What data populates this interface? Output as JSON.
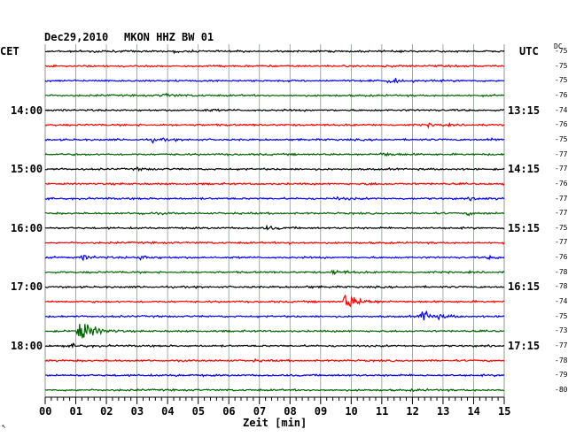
{
  "header": {
    "date": "Dec29,2010",
    "station": "MKON HHZ BW 01",
    "left_tz": "CET",
    "right_tz": "UTC",
    "dc_label": "DC"
  },
  "left_times": [
    "14:00",
    "15:00",
    "16:00",
    "17:00",
    "18:00"
  ],
  "right_times": [
    "13:15",
    "14:15",
    "15:15",
    "16:15",
    "17:15"
  ],
  "x_ticks": [
    "00",
    "01",
    "02",
    "03",
    "04",
    "05",
    "06",
    "07",
    "08",
    "09",
    "10",
    "11",
    "12",
    "13",
    "14",
    "15"
  ],
  "x_label": "Zeit [min]",
  "footnote": "↖",
  "trace_colors": [
    "#000000",
    "#ff0000",
    "#0000ff",
    "#006400"
  ],
  "grid_color": "#8a9a8a",
  "chart_data": {
    "type": "line",
    "title": "Dec29,2010 MKON HHZ BW 01",
    "xlabel": "Zeit [min]",
    "xlim": [
      0,
      15
    ],
    "rows": [
      {
        "dc": -75,
        "events": [
          {
            "t": 1.5,
            "a": 1
          },
          {
            "t": 4.2,
            "a": 0.8
          }
        ]
      },
      {
        "dc": -75,
        "events": [
          {
            "t": 11.0,
            "a": 0.7
          }
        ]
      },
      {
        "dc": -75,
        "events": [
          {
            "t": 11.2,
            "a": 2.5
          }
        ]
      },
      {
        "dc": -76,
        "events": [
          {
            "t": 3.8,
            "a": 2
          }
        ]
      },
      {
        "dc": -74,
        "events": [
          {
            "t": 5.2,
            "a": 0.7
          }
        ]
      },
      {
        "dc": -76,
        "events": [
          {
            "t": 12.5,
            "a": 1.2
          }
        ]
      },
      {
        "dc": -75,
        "events": [
          {
            "t": 3.5,
            "a": 1.5
          },
          {
            "t": 14.5,
            "a": 1
          }
        ]
      },
      {
        "dc": -77,
        "events": [
          {
            "t": 11.0,
            "a": 1.8
          }
        ]
      },
      {
        "dc": -77,
        "events": [
          {
            "t": 3.0,
            "a": 1
          }
        ]
      },
      {
        "dc": -76,
        "events": [
          {
            "t": 10.5,
            "a": 0.7
          }
        ]
      },
      {
        "dc": -77,
        "events": [
          {
            "t": 9.5,
            "a": 1
          },
          {
            "t": 13.9,
            "a": 1.2
          }
        ]
      },
      {
        "dc": -77,
        "events": [
          {
            "t": 3.0,
            "a": 1.2
          },
          {
            "t": 13.8,
            "a": 1
          }
        ]
      },
      {
        "dc": -75,
        "events": [
          {
            "t": 7.2,
            "a": 1.5
          }
        ]
      },
      {
        "dc": -77,
        "events": [
          {
            "t": 8.0,
            "a": 0.8
          }
        ]
      },
      {
        "dc": -76,
        "events": [
          {
            "t": 1.2,
            "a": 2
          },
          {
            "t": 3.1,
            "a": 2
          },
          {
            "t": 14.5,
            "a": 1.2
          }
        ]
      },
      {
        "dc": -78,
        "events": [
          {
            "t": 9.4,
            "a": 2
          }
        ]
      },
      {
        "dc": -78,
        "events": [
          {
            "t": 8.5,
            "a": 0.6
          }
        ]
      },
      {
        "dc": -74,
        "events": [
          {
            "t": 9.8,
            "a": 9
          }
        ]
      },
      {
        "dc": -75,
        "events": [
          {
            "t": 12.3,
            "a": 7
          }
        ]
      },
      {
        "dc": -73,
        "events": [
          {
            "t": 1.1,
            "a": 14
          }
        ]
      },
      {
        "dc": -77,
        "events": [
          {
            "t": 0.9,
            "a": 1.5
          }
        ]
      },
      {
        "dc": -78,
        "events": [
          {
            "t": 6.8,
            "a": 0.6
          }
        ]
      },
      {
        "dc": -79,
        "events": [
          {
            "t": 4.2,
            "a": 0.5
          }
        ]
      },
      {
        "dc": -80,
        "events": [
          {
            "t": 12.0,
            "a": 0.5
          }
        ]
      }
    ]
  }
}
